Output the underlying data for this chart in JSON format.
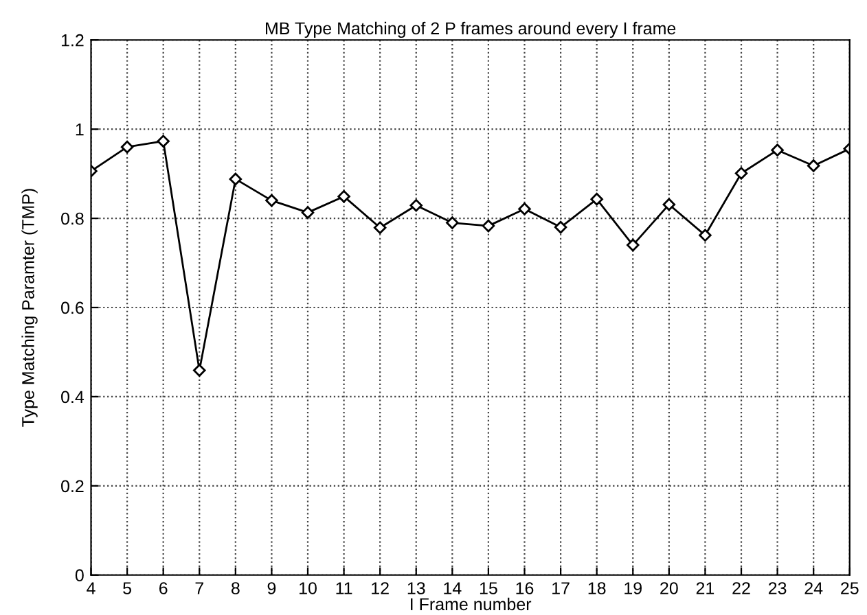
{
  "chart_data": {
    "type": "line",
    "title": "MB Type Matching of 2 P frames around every I frame",
    "xlabel": "I Frame number",
    "ylabel": "Type Matching Paramter (TMP)",
    "x": [
      4,
      5,
      6,
      7,
      8,
      9,
      10,
      11,
      12,
      13,
      14,
      15,
      16,
      17,
      18,
      19,
      20,
      21,
      22,
      23,
      24,
      25
    ],
    "series": [
      {
        "color": "#000000",
        "values": [
          0.906,
          0.96,
          0.973,
          0.459,
          0.888,
          0.84,
          0.813,
          0.849,
          0.779,
          0.829,
          0.79,
          0.783,
          0.821,
          0.78,
          0.843,
          0.74,
          0.831,
          0.762,
          0.901,
          0.953,
          0.918,
          0.956
        ]
      }
    ],
    "xlim": [
      4,
      25
    ],
    "xticks": [
      4,
      5,
      6,
      7,
      8,
      9,
      10,
      11,
      12,
      13,
      14,
      15,
      16,
      17,
      18,
      19,
      20,
      21,
      22,
      23,
      24,
      25
    ],
    "ylim": [
      0,
      1.2
    ],
    "yticks": [
      0,
      0.2,
      0.4,
      0.6,
      0.8,
      1,
      1.2
    ],
    "grid": true,
    "marker": "diamond",
    "line_style": "solid",
    "legend": false
  }
}
